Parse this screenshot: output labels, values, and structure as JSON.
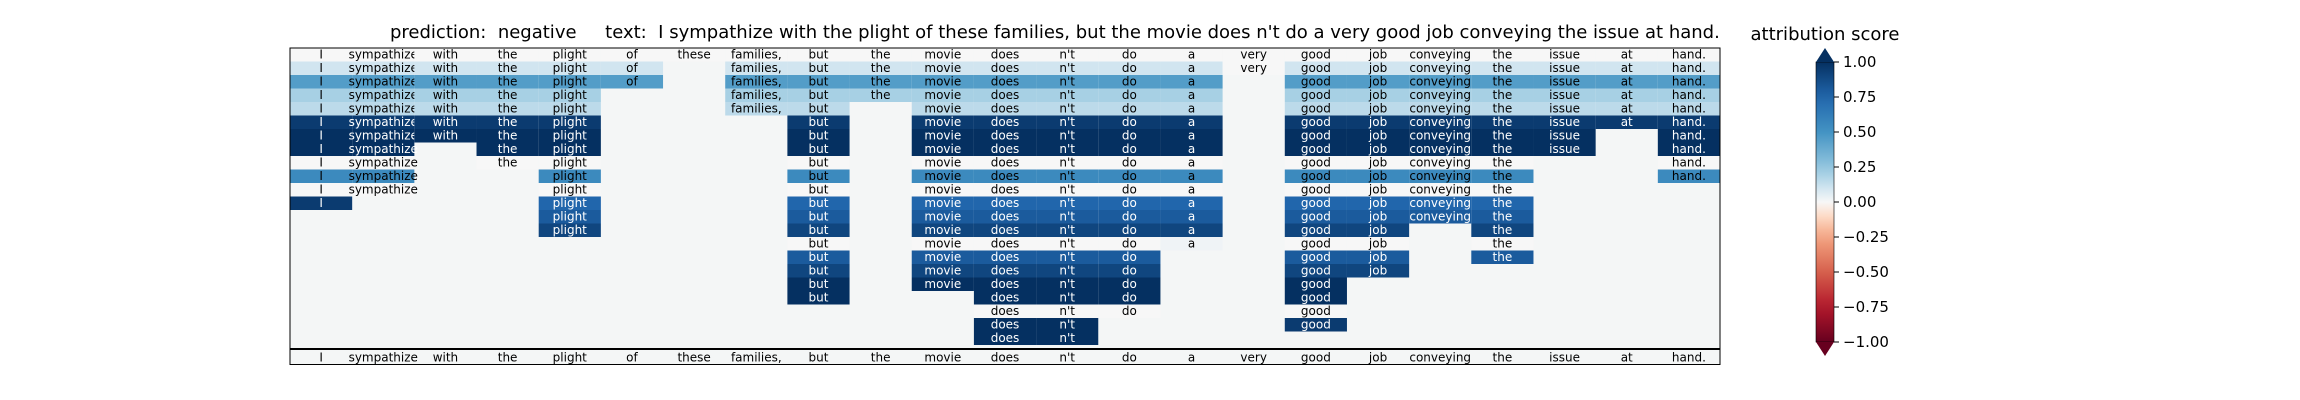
{
  "chart_data": {
    "type": "heatmap",
    "title": "prediction:  negative     text:  I sympathize with the plight of these families, but the movie does n't do a very good job conveying the issue at hand.",
    "tokens": [
      "I",
      "sympathize",
      "with",
      "the",
      "plight",
      "of",
      "these",
      "families,",
      "but",
      "the",
      "movie",
      "does",
      "n't",
      "do",
      "a",
      "very",
      "good",
      "job",
      "conveying",
      "the",
      "issue",
      "at",
      "hand."
    ],
    "rows": [
      [
        0,
        0,
        0,
        0,
        0,
        0,
        0,
        0,
        0,
        0,
        0,
        0,
        0,
        0,
        0,
        0,
        0,
        0,
        0,
        0,
        0,
        0,
        0
      ],
      [
        0.1,
        0.1,
        0.1,
        0.1,
        0.1,
        0.1,
        null,
        0.1,
        0.1,
        0.1,
        0.1,
        0.1,
        0.1,
        0.1,
        0.1,
        0,
        0.1,
        0.1,
        0.1,
        0.1,
        0.1,
        0.1,
        0.1
      ],
      [
        0.45,
        0.45,
        0.45,
        0.45,
        0.45,
        0.45,
        null,
        0.45,
        0.45,
        0.45,
        0.45,
        0.45,
        0.45,
        0.45,
        0.45,
        null,
        0.45,
        0.45,
        0.45,
        0.45,
        0.45,
        0.45,
        0.45
      ],
      [
        0.2,
        0.2,
        0.2,
        0.2,
        0.2,
        null,
        null,
        0.2,
        0.2,
        0.2,
        0.2,
        0.2,
        0.2,
        0.2,
        0.2,
        null,
        0.2,
        0.2,
        0.2,
        0.2,
        0.2,
        0.2,
        0.2
      ],
      [
        0.15,
        0.15,
        0.15,
        0.15,
        0.15,
        null,
        null,
        0.15,
        0.15,
        null,
        0.15,
        0.15,
        0.15,
        0.15,
        0.15,
        null,
        0.15,
        0.15,
        0.15,
        0.15,
        0.15,
        0.15,
        0.15
      ],
      [
        0.95,
        0.95,
        0.95,
        0.95,
        0.95,
        null,
        null,
        null,
        0.95,
        null,
        0.95,
        0.95,
        0.95,
        0.95,
        0.95,
        null,
        0.95,
        0.95,
        0.95,
        0.95,
        0.95,
        0.95,
        0.95
      ],
      [
        1,
        1,
        1,
        1,
        1,
        null,
        null,
        null,
        1,
        null,
        1,
        1,
        1,
        1,
        1,
        null,
        1,
        1,
        1,
        1,
        1,
        null,
        1
      ],
      [
        1,
        1,
        null,
        1,
        1,
        null,
        null,
        null,
        1,
        null,
        1,
        1,
        1,
        1,
        1,
        null,
        1,
        1,
        1,
        1,
        1,
        null,
        1
      ],
      [
        0,
        0,
        null,
        0,
        0,
        null,
        null,
        null,
        0,
        null,
        0,
        0,
        0,
        0,
        0,
        null,
        0,
        0,
        0,
        0,
        null,
        null,
        0
      ],
      [
        0.55,
        0.55,
        null,
        null,
        0.55,
        null,
        null,
        null,
        0.55,
        null,
        0.55,
        0.55,
        0.55,
        0.55,
        0.55,
        null,
        0.55,
        0.55,
        0.55,
        0.55,
        null,
        null,
        0.55
      ],
      [
        0,
        0,
        null,
        null,
        0,
        null,
        null,
        null,
        0,
        null,
        0,
        0,
        0,
        0,
        0,
        null,
        0,
        0,
        0,
        0,
        null,
        null,
        null
      ],
      [
        0.95,
        null,
        null,
        null,
        0.75,
        null,
        null,
        null,
        0.75,
        null,
        0.75,
        0.75,
        0.75,
        0.75,
        0.75,
        null,
        0.75,
        0.75,
        0.75,
        0.75,
        null,
        null,
        null
      ],
      [
        null,
        null,
        null,
        null,
        0.8,
        null,
        null,
        null,
        0.8,
        null,
        0.8,
        0.8,
        0.8,
        0.8,
        0.8,
        null,
        0.8,
        0.8,
        0.8,
        0.8,
        null,
        null,
        null
      ],
      [
        null,
        null,
        null,
        null,
        0.9,
        null,
        null,
        null,
        0.9,
        null,
        0.9,
        0.9,
        0.9,
        0.9,
        0.9,
        null,
        0.9,
        0.9,
        null,
        0.9,
        null,
        null,
        null
      ],
      [
        null,
        null,
        null,
        null,
        null,
        null,
        null,
        null,
        0,
        null,
        0,
        0,
        0,
        0,
        0.02,
        null,
        0,
        0,
        null,
        0,
        null,
        null,
        null
      ],
      [
        null,
        null,
        null,
        null,
        null,
        null,
        null,
        null,
        0.8,
        null,
        0.8,
        0.8,
        0.8,
        0.8,
        null,
        null,
        0.8,
        0.8,
        null,
        0.8,
        null,
        null,
        null
      ],
      [
        null,
        null,
        null,
        null,
        null,
        null,
        null,
        null,
        0.9,
        null,
        0.9,
        0.9,
        0.9,
        0.9,
        null,
        null,
        0.9,
        0.9,
        null,
        null,
        null,
        null,
        null
      ],
      [
        null,
        null,
        null,
        null,
        null,
        null,
        null,
        null,
        1,
        null,
        1,
        1,
        1,
        1,
        null,
        null,
        1,
        null,
        null,
        null,
        null,
        null,
        null
      ],
      [
        null,
        null,
        null,
        null,
        null,
        null,
        null,
        null,
        1,
        null,
        null,
        1,
        1,
        1,
        null,
        null,
        1,
        null,
        null,
        null,
        null,
        null,
        null
      ],
      [
        null,
        null,
        null,
        null,
        null,
        null,
        null,
        null,
        null,
        null,
        null,
        0,
        0,
        0,
        null,
        null,
        0,
        null,
        null,
        null,
        null,
        null,
        null
      ],
      [
        null,
        null,
        null,
        null,
        null,
        null,
        null,
        null,
        null,
        null,
        null,
        1,
        1,
        null,
        null,
        null,
        0.95,
        null,
        null,
        null,
        null,
        null,
        null
      ],
      [
        null,
        null,
        null,
        null,
        null,
        null,
        null,
        null,
        null,
        null,
        null,
        1,
        1,
        null,
        null,
        null,
        null,
        null,
        null,
        null,
        null,
        null,
        null
      ]
    ],
    "bottom_row": [
      "I",
      "sympathize",
      "with",
      "the",
      "plight",
      "of",
      "these",
      "families,",
      "but",
      "the",
      "movie",
      "does",
      "n't",
      "do",
      "a",
      "very",
      "good",
      "job",
      "conveying",
      "the",
      "issue",
      "at",
      "hand."
    ],
    "colorbar": {
      "title": "attribution score",
      "range": [
        -1.0,
        1.0
      ],
      "ticks": [
        "1.00",
        "0.75",
        "0.50",
        "0.25",
        "0.00",
        "−0.25",
        "−0.50",
        "−0.75",
        "−1.00"
      ],
      "colormap": "RdBu",
      "extend": "both"
    },
    "background_color": "#f4f6f6",
    "grid": false
  }
}
